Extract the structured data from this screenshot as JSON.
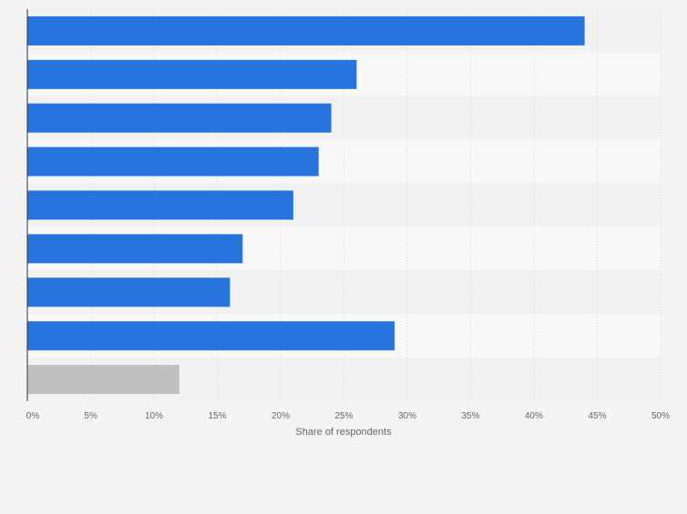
{
  "chart_data": {
    "type": "bar",
    "orientation": "horizontal",
    "xlabel": "Share of respondents",
    "ylabel": "",
    "xlim": [
      0,
      50
    ],
    "ticks": [
      "0%",
      "5%",
      "10%",
      "15%",
      "20%",
      "25%",
      "30%",
      "35%",
      "40%",
      "45%",
      "50%"
    ],
    "tick_values": [
      0,
      5,
      10,
      15,
      20,
      25,
      30,
      35,
      40,
      45,
      50
    ],
    "categories": [
      "",
      "",
      "",
      "",
      "",
      "",
      "",
      "",
      ""
    ],
    "values": [
      44,
      26,
      24,
      23,
      21,
      17,
      16,
      29,
      12
    ],
    "bar_colors": [
      "#2775dc",
      "#2775dc",
      "#2775dc",
      "#2775dc",
      "#2775dc",
      "#2775dc",
      "#2775dc",
      "#2775dc",
      "#c0c0c0"
    ],
    "grid": true,
    "legend": "none"
  },
  "colors": {
    "page_background": "#f4f4f4",
    "band_light": "#f8f8f8",
    "band_dark": "#f2f2f2",
    "gridline": "#d8d8d8",
    "axis_line": "#333333",
    "tick_text": "#666666"
  }
}
